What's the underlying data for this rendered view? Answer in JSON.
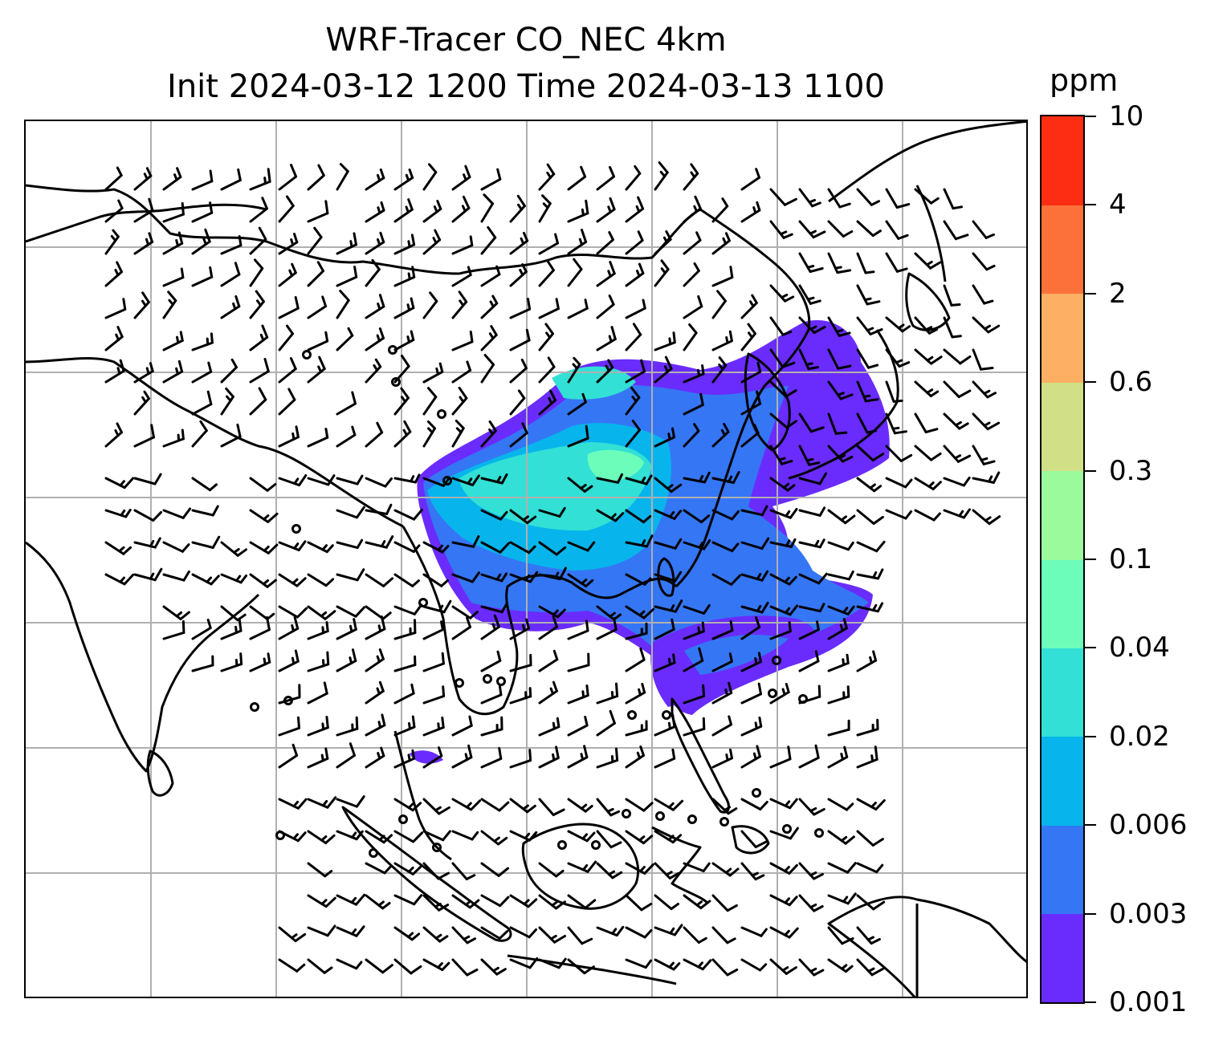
{
  "title": {
    "line1": "WRF-Tracer CO_NEC 4km",
    "line2": "Init 2024-03-12 1200 Time 2024-03-13 1100"
  },
  "colorbar": {
    "unit": "ppm",
    "levels": [
      "0.001",
      "0.003",
      "0.006",
      "0.02",
      "0.04",
      "0.1",
      "0.3",
      "0.6",
      "2",
      "4",
      "10"
    ],
    "colors": [
      "#6a2cfc",
      "#3576f5",
      "#07b5ec",
      "#32e0d5",
      "#6cfdbb",
      "#9bfa9c",
      "#d1e086",
      "#fdb064",
      "#fc7139",
      "#fd2d13"
    ]
  },
  "map": {
    "gridlines": "on",
    "coastline_color": "#000000",
    "grid_color": "#b0b0b0",
    "icons": [
      "wind-barbs",
      "calm-wind-circles"
    ]
  }
}
